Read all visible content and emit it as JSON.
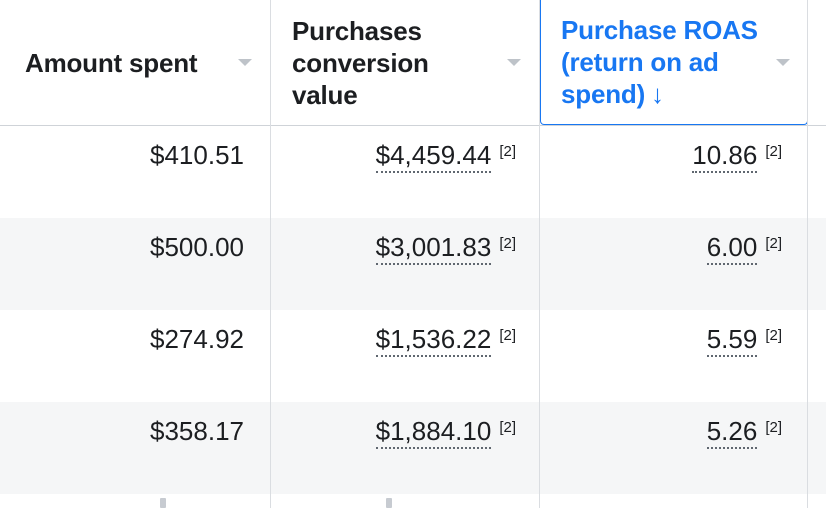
{
  "table": {
    "columns": [
      {
        "label": "Amount spent",
        "sort_arrow": ""
      },
      {
        "label": "Purchases conversion value",
        "sort_arrow": ""
      },
      {
        "label": "Purchase ROAS (return on ad spend)",
        "sort_arrow": "↓"
      }
    ],
    "sorted_column_color": "#1877f2",
    "rows": [
      {
        "amount_spent": "$410.51",
        "conversion_value": "$4,459.44",
        "conversion_ref": "[2]",
        "roas": "10.86",
        "roas_ref": "[2]"
      },
      {
        "amount_spent": "$500.00",
        "conversion_value": "$3,001.83",
        "conversion_ref": "[2]",
        "roas": "6.00",
        "roas_ref": "[2]"
      },
      {
        "amount_spent": "$274.92",
        "conversion_value": "$1,536.22",
        "conversion_ref": "[2]",
        "roas": "5.59",
        "roas_ref": "[2]"
      },
      {
        "amount_spent": "$358.17",
        "conversion_value": "$1,884.10",
        "conversion_ref": "[2]",
        "roas": "5.26",
        "roas_ref": "[2]"
      }
    ],
    "header_icons": [
      "dropdown-caret-icon",
      "dropdown-caret-icon",
      "dropdown-caret-icon"
    ]
  }
}
